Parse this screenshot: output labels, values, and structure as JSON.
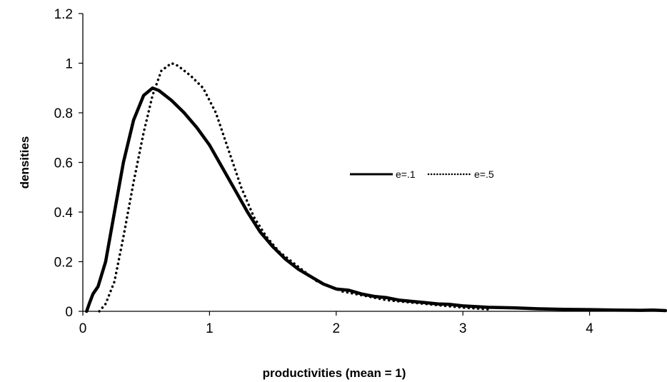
{
  "chart_data": {
    "type": "line",
    "title": "",
    "xlabel": "productivities (mean = 1)",
    "ylabel": "densities",
    "xlim": [
      0,
      4.6
    ],
    "ylim": [
      0,
      1.2
    ],
    "x_ticks": [
      0,
      1,
      2,
      3,
      4
    ],
    "y_ticks": [
      0,
      0.2,
      0.4,
      0.6,
      0.8,
      1,
      1.2
    ],
    "x_tick_labels": [
      "0",
      "1",
      "2",
      "3",
      "4"
    ],
    "y_tick_labels": [
      "0",
      "0.2",
      "0.4",
      "0.6",
      "0.8",
      "1",
      "1.2"
    ],
    "grid": false,
    "legend_position": "center-right",
    "series": [
      {
        "name": "e=.1",
        "style": "solid",
        "color": "#000000",
        "x": [
          0.03,
          0.05,
          0.08,
          0.12,
          0.18,
          0.25,
          0.32,
          0.4,
          0.48,
          0.55,
          0.6,
          0.7,
          0.8,
          0.9,
          1.0,
          1.1,
          1.2,
          1.3,
          1.4,
          1.5,
          1.6,
          1.7,
          1.8,
          1.9,
          2.0,
          2.1,
          2.2,
          2.3,
          2.4,
          2.5,
          2.6,
          2.7,
          2.8,
          2.9,
          3.0,
          3.2,
          3.4,
          3.6,
          3.8,
          4.0,
          4.2,
          4.4,
          4.5,
          4.6
        ],
        "values": [
          0.0,
          0.03,
          0.07,
          0.1,
          0.2,
          0.4,
          0.6,
          0.77,
          0.87,
          0.9,
          0.89,
          0.85,
          0.8,
          0.74,
          0.67,
          0.58,
          0.49,
          0.4,
          0.32,
          0.26,
          0.21,
          0.17,
          0.14,
          0.11,
          0.09,
          0.085,
          0.07,
          0.06,
          0.055,
          0.045,
          0.04,
          0.035,
          0.03,
          0.028,
          0.022,
          0.016,
          0.014,
          0.01,
          0.008,
          0.007,
          0.005,
          0.004,
          0.005,
          0.003
        ]
      },
      {
        "name": "e=.5",
        "style": "dotted",
        "color": "#000000",
        "x": [
          0.13,
          0.18,
          0.25,
          0.32,
          0.4,
          0.48,
          0.55,
          0.62,
          0.7,
          0.75,
          0.85,
          0.95,
          1.05,
          1.15,
          1.25,
          1.35,
          1.45,
          1.55,
          1.65,
          1.75,
          1.85,
          1.95,
          2.05,
          2.2,
          2.4,
          2.6,
          2.8,
          3.0,
          3.2
        ],
        "values": [
          0.0,
          0.03,
          0.12,
          0.3,
          0.52,
          0.72,
          0.87,
          0.97,
          1.0,
          0.99,
          0.95,
          0.9,
          0.8,
          0.65,
          0.5,
          0.38,
          0.3,
          0.24,
          0.2,
          0.16,
          0.12,
          0.1,
          0.08,
          0.065,
          0.045,
          0.035,
          0.025,
          0.015,
          0.008
        ]
      }
    ]
  }
}
